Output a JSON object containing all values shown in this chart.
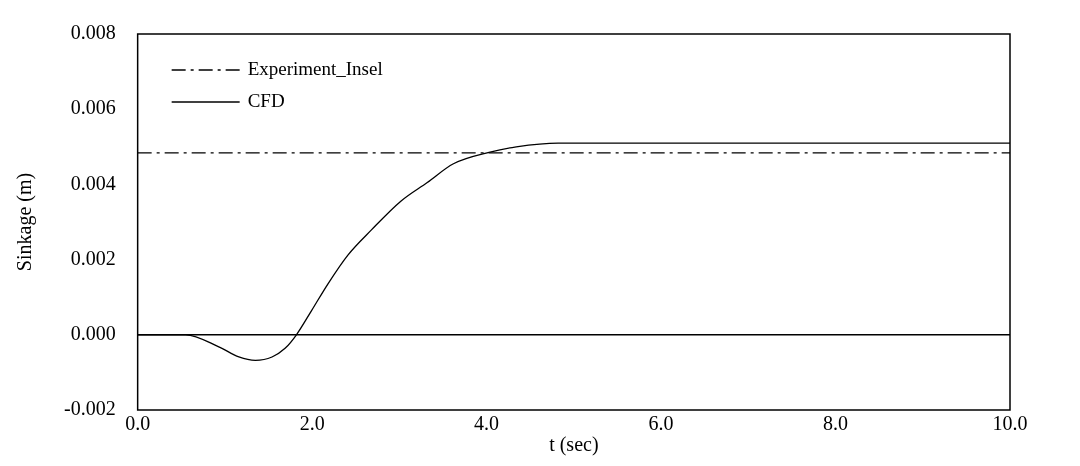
{
  "chart_data": {
    "type": "line",
    "xlabel": "t (sec)",
    "ylabel": "Sinkage (m)",
    "xlim": [
      0,
      10
    ],
    "ylim": [
      -0.002,
      0.008
    ],
    "xticks": [
      {
        "value": 0,
        "label": "0.0"
      },
      {
        "value": 2,
        "label": "2.0"
      },
      {
        "value": 4,
        "label": "4.0"
      },
      {
        "value": 6,
        "label": "6.0"
      },
      {
        "value": 8,
        "label": "8.0"
      },
      {
        "value": 10,
        "label": "10.0"
      }
    ],
    "yticks": [
      {
        "value": -0.002,
        "label": "-0.002"
      },
      {
        "value": 0,
        "label": "0.000"
      },
      {
        "value": 0.002,
        "label": "0.002"
      },
      {
        "value": 0.004,
        "label": "0.004"
      },
      {
        "value": 0.006,
        "label": "0.006"
      },
      {
        "value": 0.008,
        "label": "0.008"
      }
    ],
    "grid": false,
    "legend": "top left",
    "marker": "none",
    "ref_lines": [
      {
        "axis": "y",
        "value": 0,
        "color": "#000000",
        "line_style": "solid"
      }
    ],
    "series": [
      {
        "name": "Experiment_Insel",
        "color": "#000000",
        "line_style": "dashdot",
        "x": [
          0,
          10
        ],
        "values": [
          0.00484,
          0.00484
        ]
      },
      {
        "name": "CFD",
        "color": "#000000",
        "line_style": "solid",
        "x": [
          0,
          0.55,
          0.93,
          1.16,
          1.35,
          1.54,
          1.69,
          1.82,
          1.99,
          2.18,
          2.41,
          2.68,
          3.02,
          3.32,
          3.62,
          4.04,
          4.34,
          4.82,
          6,
          8,
          10
        ],
        "values": [
          0,
          0,
          -0.00032,
          -0.00059,
          -0.00068,
          -0.00059,
          -0.00036,
          0,
          0.00063,
          0.00135,
          0.00212,
          0.00279,
          0.00356,
          0.00405,
          0.00455,
          0.00486,
          0.005,
          0.0051,
          0.0051,
          0.0051,
          0.0051
        ]
      }
    ]
  }
}
